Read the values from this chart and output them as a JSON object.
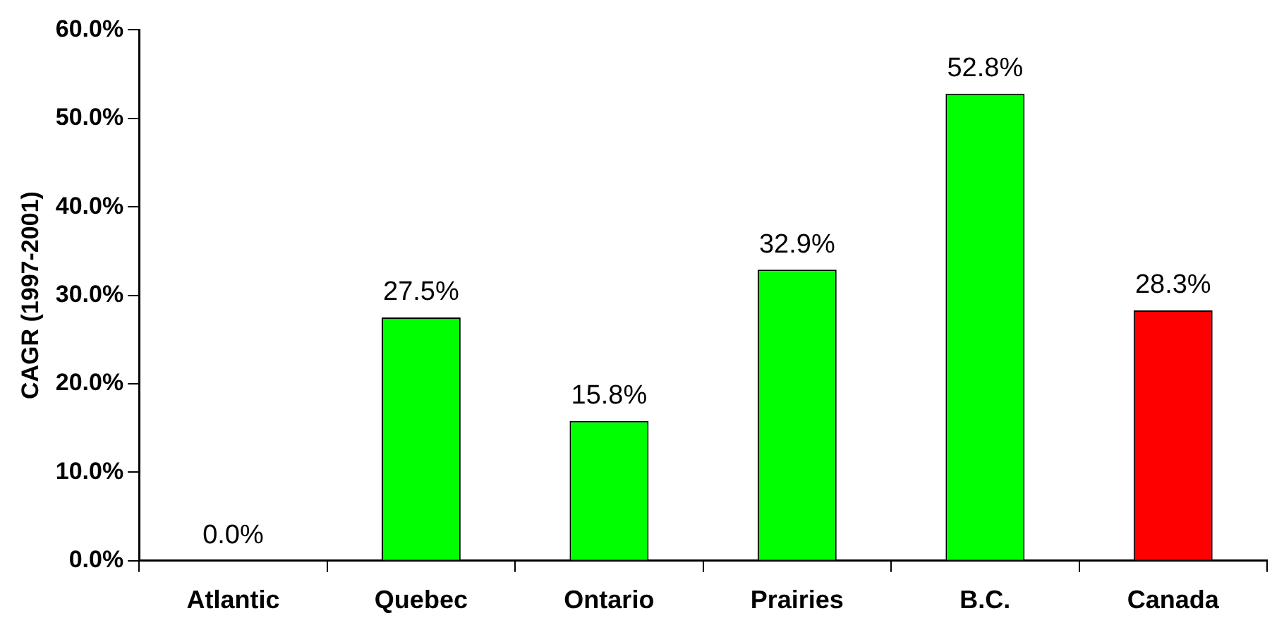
{
  "chart_data": {
    "type": "bar",
    "ylabel": "CAGR (1997-2001)",
    "categories": [
      "Atlantic",
      "Quebec",
      "Ontario",
      "Prairies",
      "B.C.",
      "Canada"
    ],
    "values": [
      0.0,
      27.5,
      15.8,
      32.9,
      52.8,
      28.3
    ],
    "colors": [
      "#00ff00",
      "#00ff00",
      "#00ff00",
      "#00ff00",
      "#00ff00",
      "#ff0000"
    ],
    "value_labels": [
      "0.0%",
      "27.5%",
      "15.8%",
      "32.9%",
      "52.8%",
      "28.3%"
    ],
    "ylim": [
      0,
      60
    ],
    "yticks": [
      {
        "value": 0,
        "label": "0.0%"
      },
      {
        "value": 10,
        "label": "10.0%"
      },
      {
        "value": 20,
        "label": "20.0%"
      },
      {
        "value": 30,
        "label": "30.0%"
      },
      {
        "value": 40,
        "label": "40.0%"
      },
      {
        "value": 50,
        "label": "50.0%"
      },
      {
        "value": 60,
        "label": "60.0%"
      }
    ],
    "grid": false,
    "legend": false
  }
}
